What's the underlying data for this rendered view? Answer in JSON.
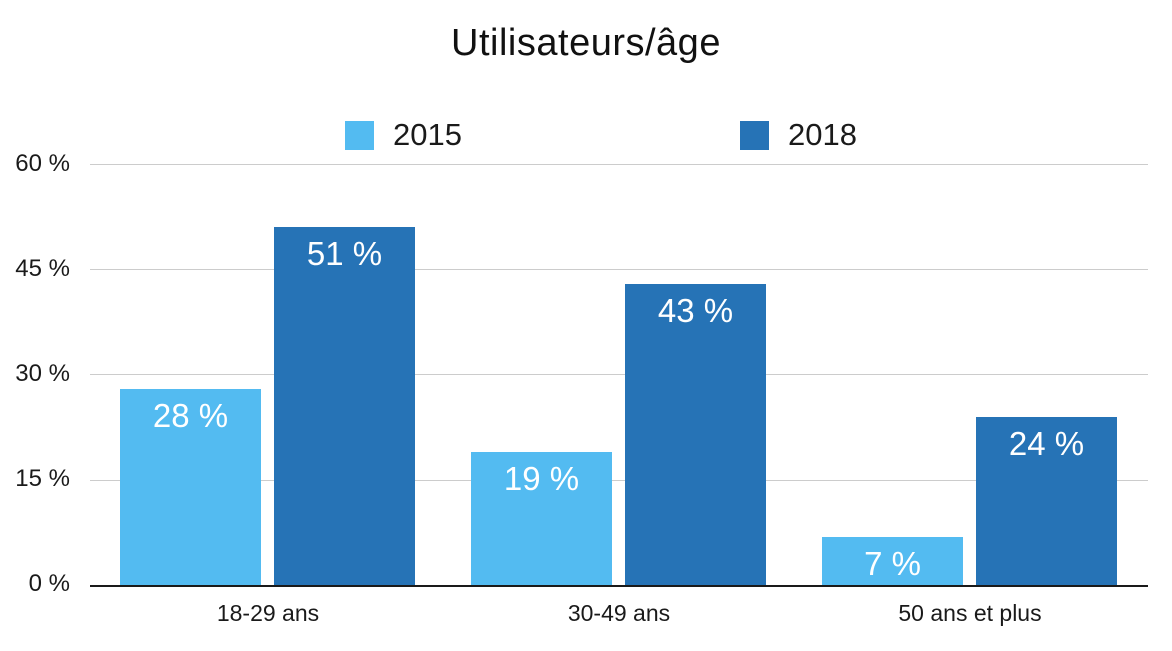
{
  "chart_data": {
    "type": "bar",
    "title": "Utilisateurs/âge",
    "categories": [
      "18-29 ans",
      "30-49 ans",
      "50 ans et plus"
    ],
    "series": [
      {
        "name": "2015",
        "color": "#53BBF1",
        "values": [
          28,
          19,
          7
        ],
        "value_labels": [
          "28 %",
          "19 %",
          "7 %"
        ]
      },
      {
        "name": "2018",
        "color": "#2673B6",
        "values": [
          51,
          43,
          24
        ],
        "value_labels": [
          "51 %",
          "43 %",
          "24 %"
        ]
      }
    ],
    "y_axis": {
      "ticks": [
        "0 %",
        "15 %",
        "30 %",
        "45 %",
        "60 %"
      ],
      "tick_values": [
        0,
        15,
        30,
        45,
        60
      ],
      "min": 0,
      "max": 60
    },
    "grid": true,
    "legend_position": "top",
    "background_color": "#FFFFFF",
    "gridline_color": "#CCCCCC",
    "axis_line_color": "#1A1A1A",
    "bar_label_color": "#FFFFFF"
  }
}
